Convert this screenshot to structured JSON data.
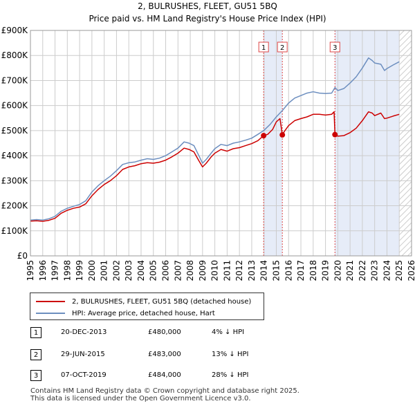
{
  "chart_data": {
    "type": "line",
    "title": "2, BULRUSHES, FLEET, GU51 5BQ",
    "subtitle": "Price paid vs. HM Land Registry's House Price Index (HPI)",
    "xlim": [
      1995,
      2026
    ],
    "ylim": [
      0,
      900000
    ],
    "x_ticks": [
      "1995",
      "1996",
      "1997",
      "1998",
      "1999",
      "2000",
      "2001",
      "2002",
      "2003",
      "2004",
      "2005",
      "2006",
      "2007",
      "2008",
      "2009",
      "2010",
      "2011",
      "2012",
      "2013",
      "2014",
      "2015",
      "2016",
      "2017",
      "2018",
      "2019",
      "2020",
      "2021",
      "2022",
      "2023",
      "2024",
      "2025",
      "2026"
    ],
    "y_ticks": [
      {
        "value": 0,
        "label": "£0"
      },
      {
        "value": 100000,
        "label": "£100K"
      },
      {
        "value": 200000,
        "label": "£200K"
      },
      {
        "value": 300000,
        "label": "£300K"
      },
      {
        "value": 400000,
        "label": "£400K"
      },
      {
        "value": 500000,
        "label": "£500K"
      },
      {
        "value": 600000,
        "label": "£600K"
      },
      {
        "value": 700000,
        "label": "£700K"
      },
      {
        "value": 800000,
        "label": "£800K"
      },
      {
        "value": 900000,
        "label": "£900K"
      }
    ],
    "shaded_ranges": [
      [
        2013.97,
        2015.49
      ],
      [
        2019.77,
        2025.0
      ]
    ],
    "future_hatch": [
      2025.0,
      2026.0
    ],
    "series": [
      {
        "name": "2, BULRUSHES, FLEET, GU51 5BQ (detached house)",
        "color": "#cc0000",
        "points": [
          [
            1995.0,
            139000
          ],
          [
            1995.5,
            140000
          ],
          [
            1996.0,
            138000
          ],
          [
            1996.5,
            142000
          ],
          [
            1997.0,
            150000
          ],
          [
            1997.5,
            170000
          ],
          [
            1998.0,
            182000
          ],
          [
            1998.5,
            190000
          ],
          [
            1999.0,
            195000
          ],
          [
            1999.5,
            208000
          ],
          [
            2000.0,
            240000
          ],
          [
            2000.5,
            265000
          ],
          [
            2001.0,
            285000
          ],
          [
            2001.5,
            300000
          ],
          [
            2002.0,
            320000
          ],
          [
            2002.5,
            345000
          ],
          [
            2003.0,
            355000
          ],
          [
            2003.5,
            360000
          ],
          [
            2004.0,
            368000
          ],
          [
            2004.5,
            372000
          ],
          [
            2005.0,
            370000
          ],
          [
            2005.5,
            374000
          ],
          [
            2006.0,
            382000
          ],
          [
            2006.5,
            395000
          ],
          [
            2007.0,
            410000
          ],
          [
            2007.5,
            430000
          ],
          [
            2007.9,
            425000
          ],
          [
            2008.3,
            415000
          ],
          [
            2008.7,
            380000
          ],
          [
            2009.0,
            355000
          ],
          [
            2009.3,
            370000
          ],
          [
            2009.7,
            395000
          ],
          [
            2010.0,
            410000
          ],
          [
            2010.5,
            425000
          ],
          [
            2011.0,
            418000
          ],
          [
            2011.5,
            428000
          ],
          [
            2012.0,
            432000
          ],
          [
            2012.5,
            440000
          ],
          [
            2013.0,
            448000
          ],
          [
            2013.5,
            460000
          ],
          [
            2013.97,
            480000
          ],
          [
            2014.3,
            485000
          ],
          [
            2014.7,
            505000
          ],
          [
            2015.0,
            535000
          ],
          [
            2015.3,
            548000
          ],
          [
            2015.49,
            483000
          ],
          [
            2015.7,
            500000
          ],
          [
            2016.0,
            520000
          ],
          [
            2016.5,
            540000
          ],
          [
            2017.0,
            548000
          ],
          [
            2017.5,
            555000
          ],
          [
            2018.0,
            565000
          ],
          [
            2018.5,
            565000
          ],
          [
            2019.0,
            562000
          ],
          [
            2019.5,
            565000
          ],
          [
            2019.7,
            575000
          ],
          [
            2019.77,
            484000
          ],
          [
            2020.0,
            478000
          ],
          [
            2020.5,
            480000
          ],
          [
            2021.0,
            492000
          ],
          [
            2021.5,
            510000
          ],
          [
            2022.0,
            540000
          ],
          [
            2022.5,
            575000
          ],
          [
            2022.8,
            570000
          ],
          [
            2023.0,
            560000
          ],
          [
            2023.5,
            570000
          ],
          [
            2023.8,
            548000
          ],
          [
            2024.0,
            550000
          ],
          [
            2024.5,
            558000
          ],
          [
            2025.0,
            565000
          ]
        ]
      },
      {
        "name": "HPI: Average price, detached house, Hart",
        "color": "#6c8ebf",
        "points": [
          [
            1995.0,
            143000
          ],
          [
            1995.5,
            145000
          ],
          [
            1996.0,
            143000
          ],
          [
            1996.5,
            148000
          ],
          [
            1997.0,
            158000
          ],
          [
            1997.5,
            178000
          ],
          [
            1998.0,
            190000
          ],
          [
            1998.5,
            198000
          ],
          [
            1999.0,
            205000
          ],
          [
            1999.5,
            220000
          ],
          [
            2000.0,
            255000
          ],
          [
            2000.5,
            280000
          ],
          [
            2001.0,
            300000
          ],
          [
            2001.5,
            318000
          ],
          [
            2002.0,
            340000
          ],
          [
            2002.5,
            365000
          ],
          [
            2003.0,
            372000
          ],
          [
            2003.5,
            375000
          ],
          [
            2004.0,
            382000
          ],
          [
            2004.5,
            388000
          ],
          [
            2005.0,
            385000
          ],
          [
            2005.5,
            390000
          ],
          [
            2006.0,
            400000
          ],
          [
            2006.5,
            415000
          ],
          [
            2007.0,
            430000
          ],
          [
            2007.5,
            455000
          ],
          [
            2007.9,
            450000
          ],
          [
            2008.3,
            440000
          ],
          [
            2008.7,
            400000
          ],
          [
            2009.0,
            370000
          ],
          [
            2009.3,
            385000
          ],
          [
            2009.7,
            410000
          ],
          [
            2010.0,
            428000
          ],
          [
            2010.5,
            445000
          ],
          [
            2011.0,
            440000
          ],
          [
            2011.5,
            450000
          ],
          [
            2012.0,
            455000
          ],
          [
            2012.5,
            462000
          ],
          [
            2013.0,
            470000
          ],
          [
            2013.5,
            485000
          ],
          [
            2013.97,
            500000
          ],
          [
            2014.5,
            525000
          ],
          [
            2015.0,
            555000
          ],
          [
            2015.49,
            580000
          ],
          [
            2016.0,
            610000
          ],
          [
            2016.5,
            630000
          ],
          [
            2017.0,
            640000
          ],
          [
            2017.5,
            650000
          ],
          [
            2018.0,
            655000
          ],
          [
            2018.5,
            650000
          ],
          [
            2019.0,
            648000
          ],
          [
            2019.5,
            650000
          ],
          [
            2019.77,
            672000
          ],
          [
            2020.0,
            660000
          ],
          [
            2020.5,
            668000
          ],
          [
            2021.0,
            690000
          ],
          [
            2021.5,
            715000
          ],
          [
            2022.0,
            750000
          ],
          [
            2022.5,
            790000
          ],
          [
            2022.8,
            780000
          ],
          [
            2023.0,
            770000
          ],
          [
            2023.5,
            765000
          ],
          [
            2023.8,
            740000
          ],
          [
            2024.0,
            748000
          ],
          [
            2024.5,
            762000
          ],
          [
            2025.0,
            775000
          ]
        ]
      }
    ],
    "sales": [
      {
        "id": "1",
        "x": 2013.97,
        "price": 480000
      },
      {
        "id": "2",
        "x": 2015.49,
        "price": 483000
      },
      {
        "id": "3",
        "x": 2019.77,
        "price": 484000
      }
    ]
  },
  "legend": {
    "property": "2, BULRUSHES, FLEET, GU51 5BQ (detached house)",
    "hpi": "HPI: Average price, detached house, Hart"
  },
  "transactions": [
    {
      "id": "1",
      "date": "20-DEC-2013",
      "price": "£480,000",
      "hpi": "4% ↓ HPI"
    },
    {
      "id": "2",
      "date": "29-JUN-2015",
      "price": "£483,000",
      "hpi": "13% ↓ HPI"
    },
    {
      "id": "3",
      "date": "07-OCT-2019",
      "price": "£484,000",
      "hpi": "28% ↓ HPI"
    }
  ],
  "footer": {
    "line1": "Contains HM Land Registry data © Crown copyright and database right 2025.",
    "line2": "This data is licensed under the Open Government Licence v3.0."
  },
  "colors": {
    "property": "#cc0000",
    "hpi": "#6c8ebf",
    "shade": "#e6ecf8",
    "grid": "#cccccc"
  }
}
